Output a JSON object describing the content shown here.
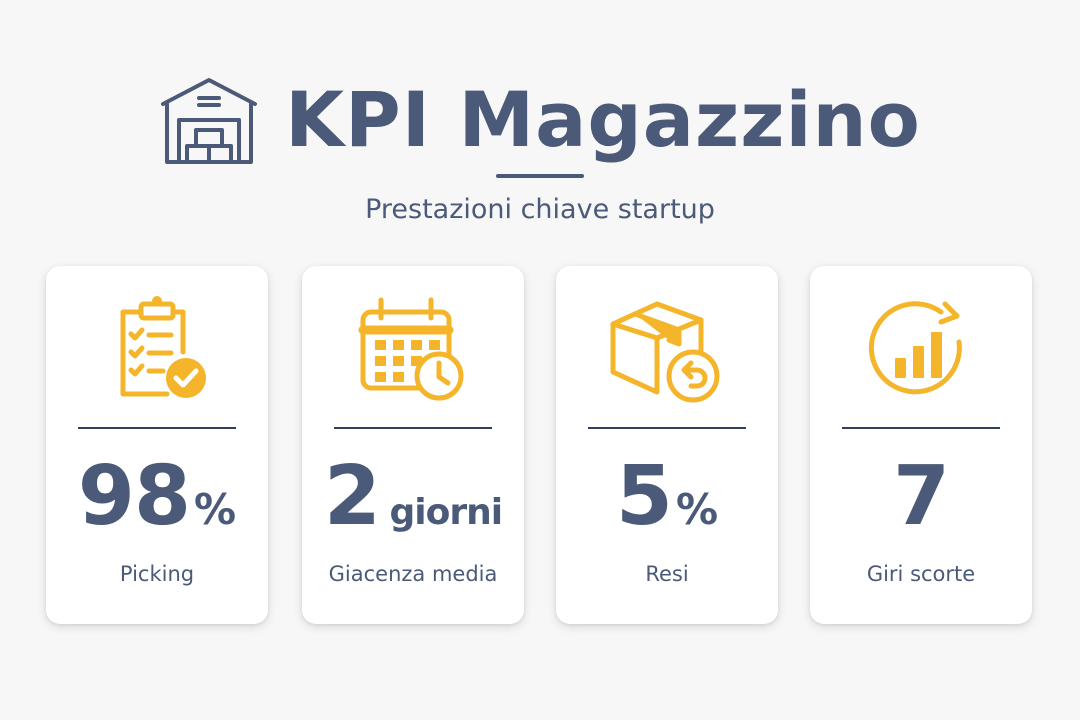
{
  "header": {
    "title": "KPI Magazzino",
    "subtitle": "Prestazioni chiave startup",
    "icon": "warehouse-icon"
  },
  "colors": {
    "text": "#4a5a78",
    "accent": "#f4b52a",
    "divider": "#2e3e5c"
  },
  "cards": [
    {
      "icon": "clipboard-check-icon",
      "value": "98",
      "unit": "%",
      "label": "Picking"
    },
    {
      "icon": "calendar-clock-icon",
      "value": "2",
      "unit": "giorni",
      "label": "Giacenza media"
    },
    {
      "icon": "box-return-icon",
      "value": "5",
      "unit": "%",
      "label": "Resi"
    },
    {
      "icon": "rising-bars-cycle-icon",
      "value": "7",
      "unit": "",
      "label": "Giri scorte"
    }
  ]
}
